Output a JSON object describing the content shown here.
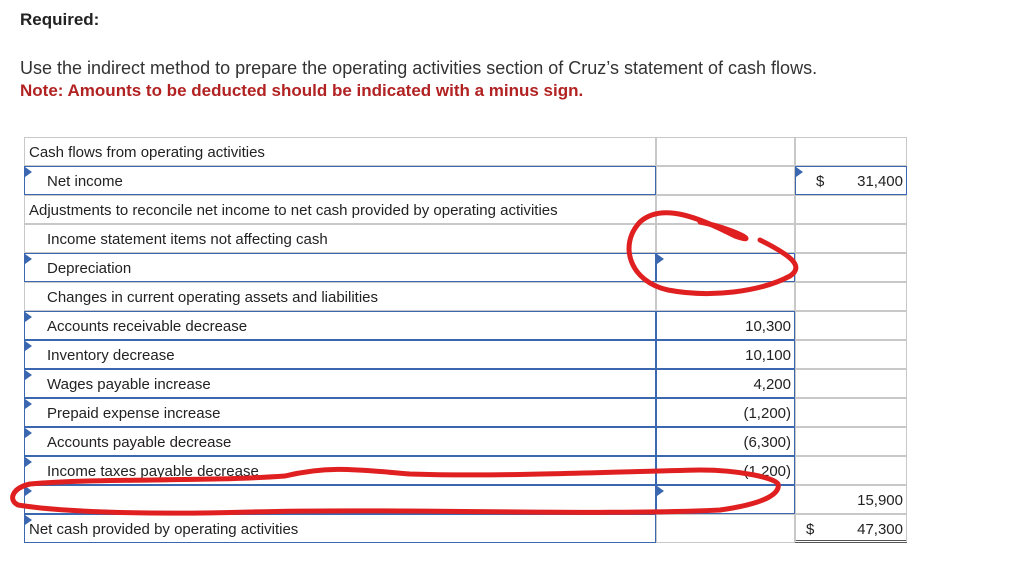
{
  "header": {
    "required": "Required:",
    "instruction": "Use the indirect method to prepare the operating activities section of Cruz’s statement of cash flows.",
    "note": "Note: Amounts to be deducted should be indicated with a minus sign."
  },
  "table": {
    "section_title": "Cash flows from operating activities",
    "net_income_label": "Net income",
    "net_income_currency": "$",
    "net_income_value": "31,400",
    "adjustments_label": "Adjustments to reconcile net income to net cash provided by operating activities",
    "noncash_label": "Income statement items not affecting cash",
    "depreciation_label": "Depreciation",
    "depreciation_value": "",
    "changes_label": "Changes in current operating assets and liabilities",
    "changes": [
      {
        "label": "Accounts receivable decrease",
        "value": "10,300"
      },
      {
        "label": "Inventory decrease",
        "value": "10,100"
      },
      {
        "label": "Wages payable increase",
        "value": "4,200"
      },
      {
        "label": "Prepaid expense increase",
        "value": "(1,200)"
      },
      {
        "label": "Accounts payable decrease",
        "value": "(6,300)"
      },
      {
        "label": "Income taxes payable decrease",
        "value": "(1,200)"
      }
    ],
    "blank_row_label": "",
    "blank_row_value": "",
    "total_adjustments": "15,900",
    "net_cash_label": "Net cash provided by operating activities",
    "net_cash_currency": "$",
    "net_cash_value": "47,300"
  },
  "annotations": {
    "pen_color": "#e02020"
  }
}
